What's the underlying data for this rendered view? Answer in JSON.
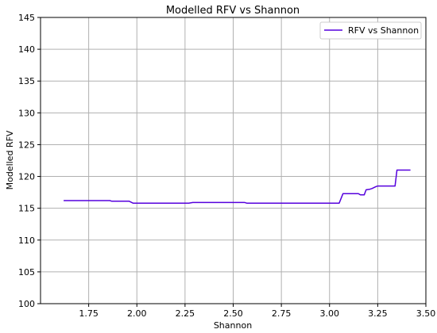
{
  "chart_data": {
    "type": "line",
    "title": "Modelled RFV vs Shannon",
    "xlabel": "Shannon",
    "ylabel": "Modelled RFV",
    "xlim": [
      1.5,
      3.5
    ],
    "ylim": [
      100,
      145
    ],
    "xticks": [
      1.75,
      2.0,
      2.25,
      2.5,
      2.75,
      3.0,
      3.25,
      3.5
    ],
    "xtick_labels": [
      "1.75",
      "2.00",
      "2.25",
      "2.50",
      "2.75",
      "3.00",
      "3.25",
      "3.50"
    ],
    "yticks": [
      100,
      105,
      110,
      115,
      120,
      125,
      130,
      135,
      140,
      145
    ],
    "ytick_labels": [
      "100",
      "105",
      "110",
      "115",
      "120",
      "125",
      "130",
      "135",
      "140",
      "145"
    ],
    "grid": true,
    "legend_position": "top-right",
    "series": [
      {
        "name": "RFV vs Shannon",
        "color": "#5500dd",
        "x": [
          1.62,
          1.86,
          1.87,
          1.96,
          1.98,
          2.27,
          2.29,
          2.56,
          2.57,
          2.93,
          2.94,
          3.05,
          3.07,
          3.15,
          3.16,
          3.18,
          3.19,
          3.21,
          3.22,
          3.24,
          3.25,
          3.34,
          3.35,
          3.42
        ],
        "y": [
          116.2,
          116.2,
          116.1,
          116.1,
          115.8,
          115.8,
          115.9,
          115.9,
          115.8,
          115.8,
          115.8,
          115.8,
          117.3,
          117.3,
          117.1,
          117.1,
          117.9,
          118.0,
          118.1,
          118.4,
          118.5,
          118.5,
          121.0,
          121.0
        ]
      }
    ]
  }
}
